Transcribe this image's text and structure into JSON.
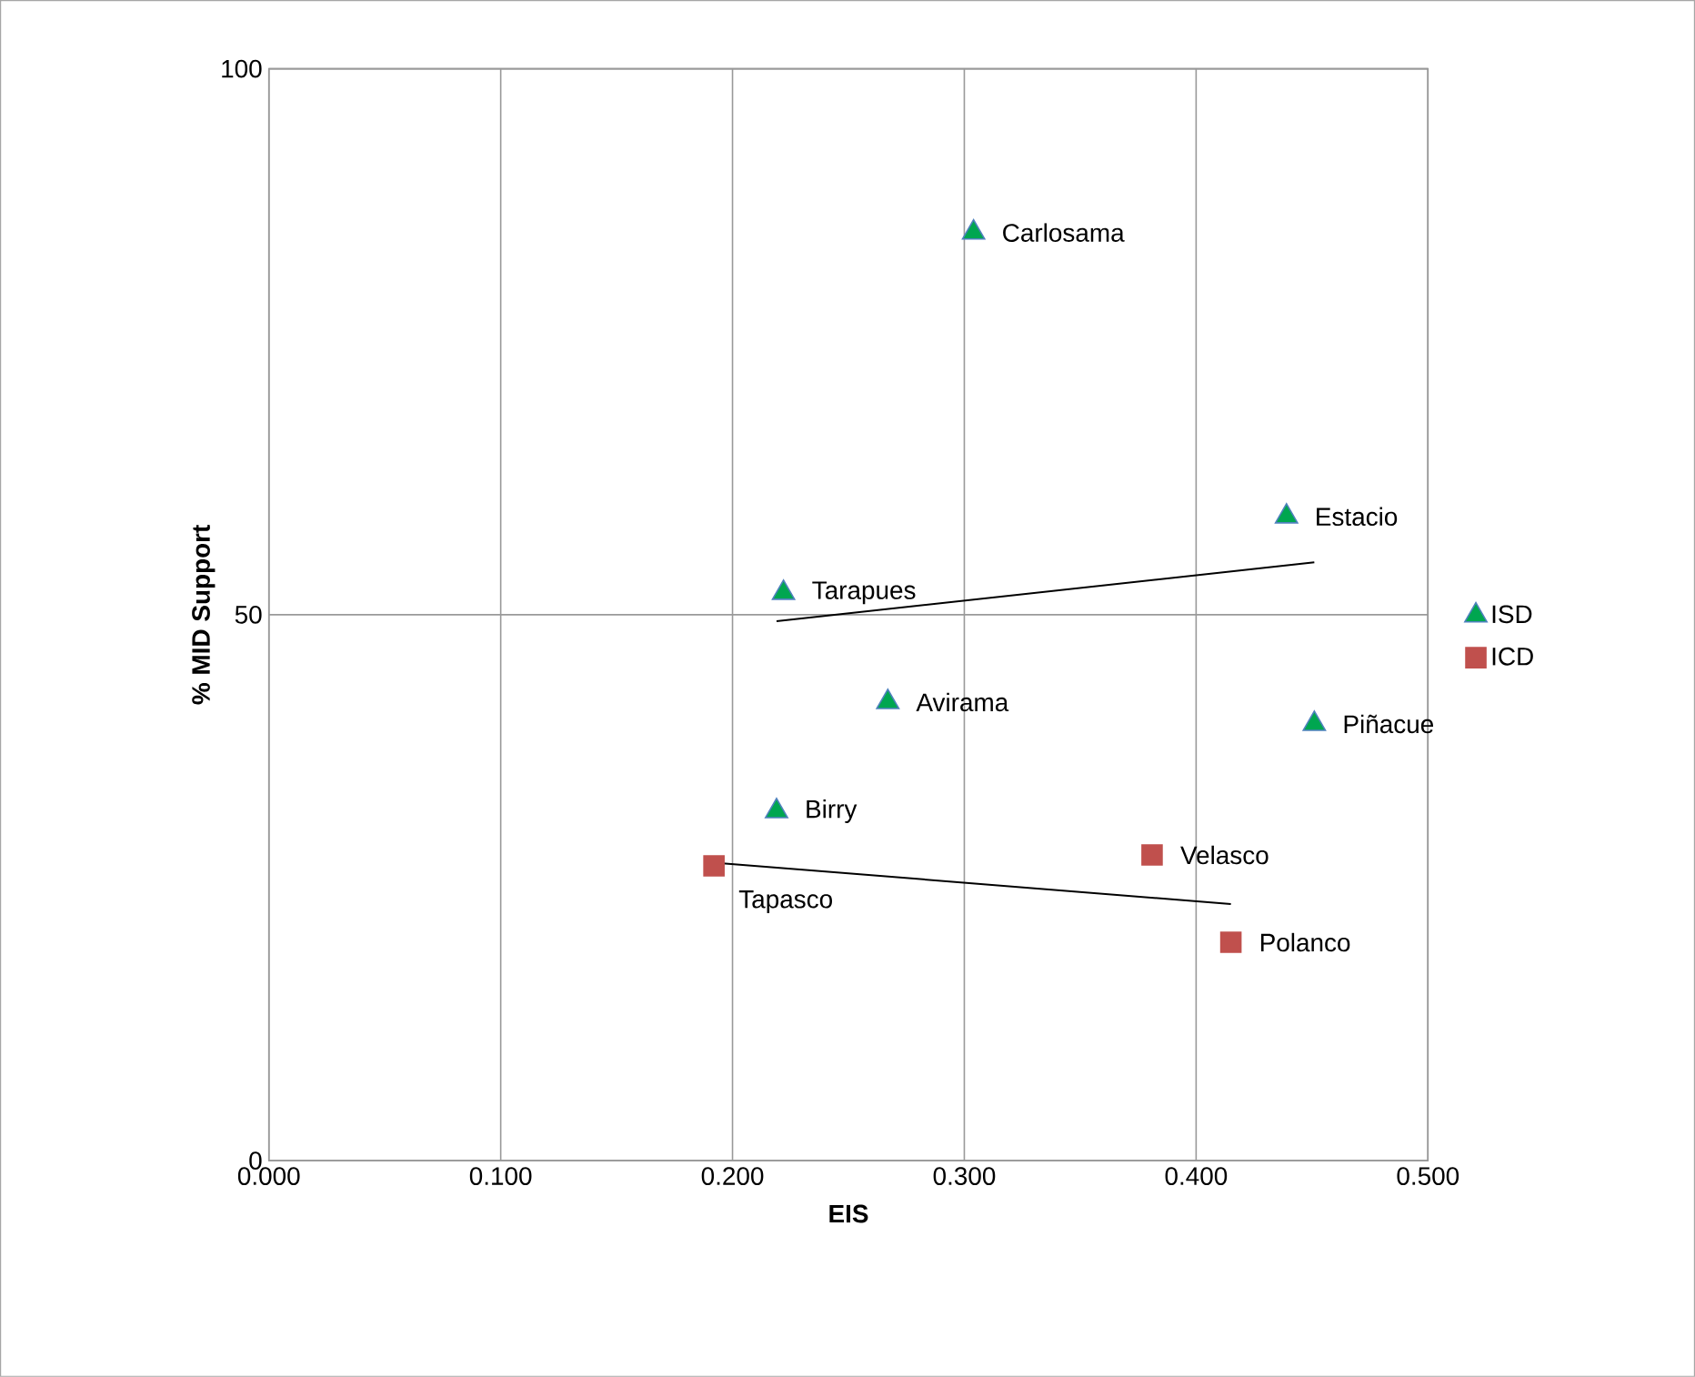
{
  "chart_data": {
    "type": "scatter",
    "xlabel": "EIS",
    "ylabel": "% MID Support",
    "xlim": [
      0,
      0.5
    ],
    "ylim": [
      0,
      100
    ],
    "xticks": [
      {
        "value": 0,
        "label": "0.000"
      },
      {
        "value": 0.1,
        "label": "0.100"
      },
      {
        "value": 0.2,
        "label": "0.200"
      },
      {
        "value": 0.3,
        "label": "0.300"
      },
      {
        "value": 0.4,
        "label": "0.400"
      },
      {
        "value": 0.5,
        "label": "0.500"
      }
    ],
    "yticks": [
      0,
      50,
      100
    ],
    "grid": true,
    "legend": "right",
    "series": [
      {
        "name": "ISD",
        "marker": "triangle",
        "color": "#00a650",
        "x": [
          0.304,
          0.439,
          0.222,
          0.267,
          0.451,
          0.219
        ],
        "values": [
          85,
          59,
          52,
          42,
          40,
          32
        ]
      },
      {
        "name": "ICD",
        "marker": "square",
        "color": "#c0504d",
        "x": [
          0.192,
          0.381,
          0.415
        ],
        "values": [
          27,
          28,
          20
        ]
      },
      {
        "type": "line",
        "color": "#000000",
        "x": [
          0.219,
          0.451
        ],
        "values": [
          49.4,
          54.8
        ]
      },
      {
        "type": "line",
        "color": "#000000",
        "x": [
          0.192,
          0.415
        ],
        "values": [
          27.3,
          23.5
        ]
      }
    ],
    "annotations": [
      {
        "text": "Carlosama",
        "x": 0.304,
        "y": 85
      },
      {
        "text": "Estacio",
        "x": 0.439,
        "y": 59
      },
      {
        "text": "Tarapues",
        "x": 0.222,
        "y": 52
      },
      {
        "text": "Avirama",
        "x": 0.267,
        "y": 42
      },
      {
        "text": "Piñacue",
        "x": 0.451,
        "y": 40
      },
      {
        "text": "Birry",
        "x": 0.219,
        "y": 32
      },
      {
        "text": "Tapasco",
        "x": 0.192,
        "y": 27
      },
      {
        "text": "Velasco",
        "x": 0.381,
        "y": 28
      },
      {
        "text": "Polanco",
        "x": 0.415,
        "y": 20
      }
    ]
  }
}
